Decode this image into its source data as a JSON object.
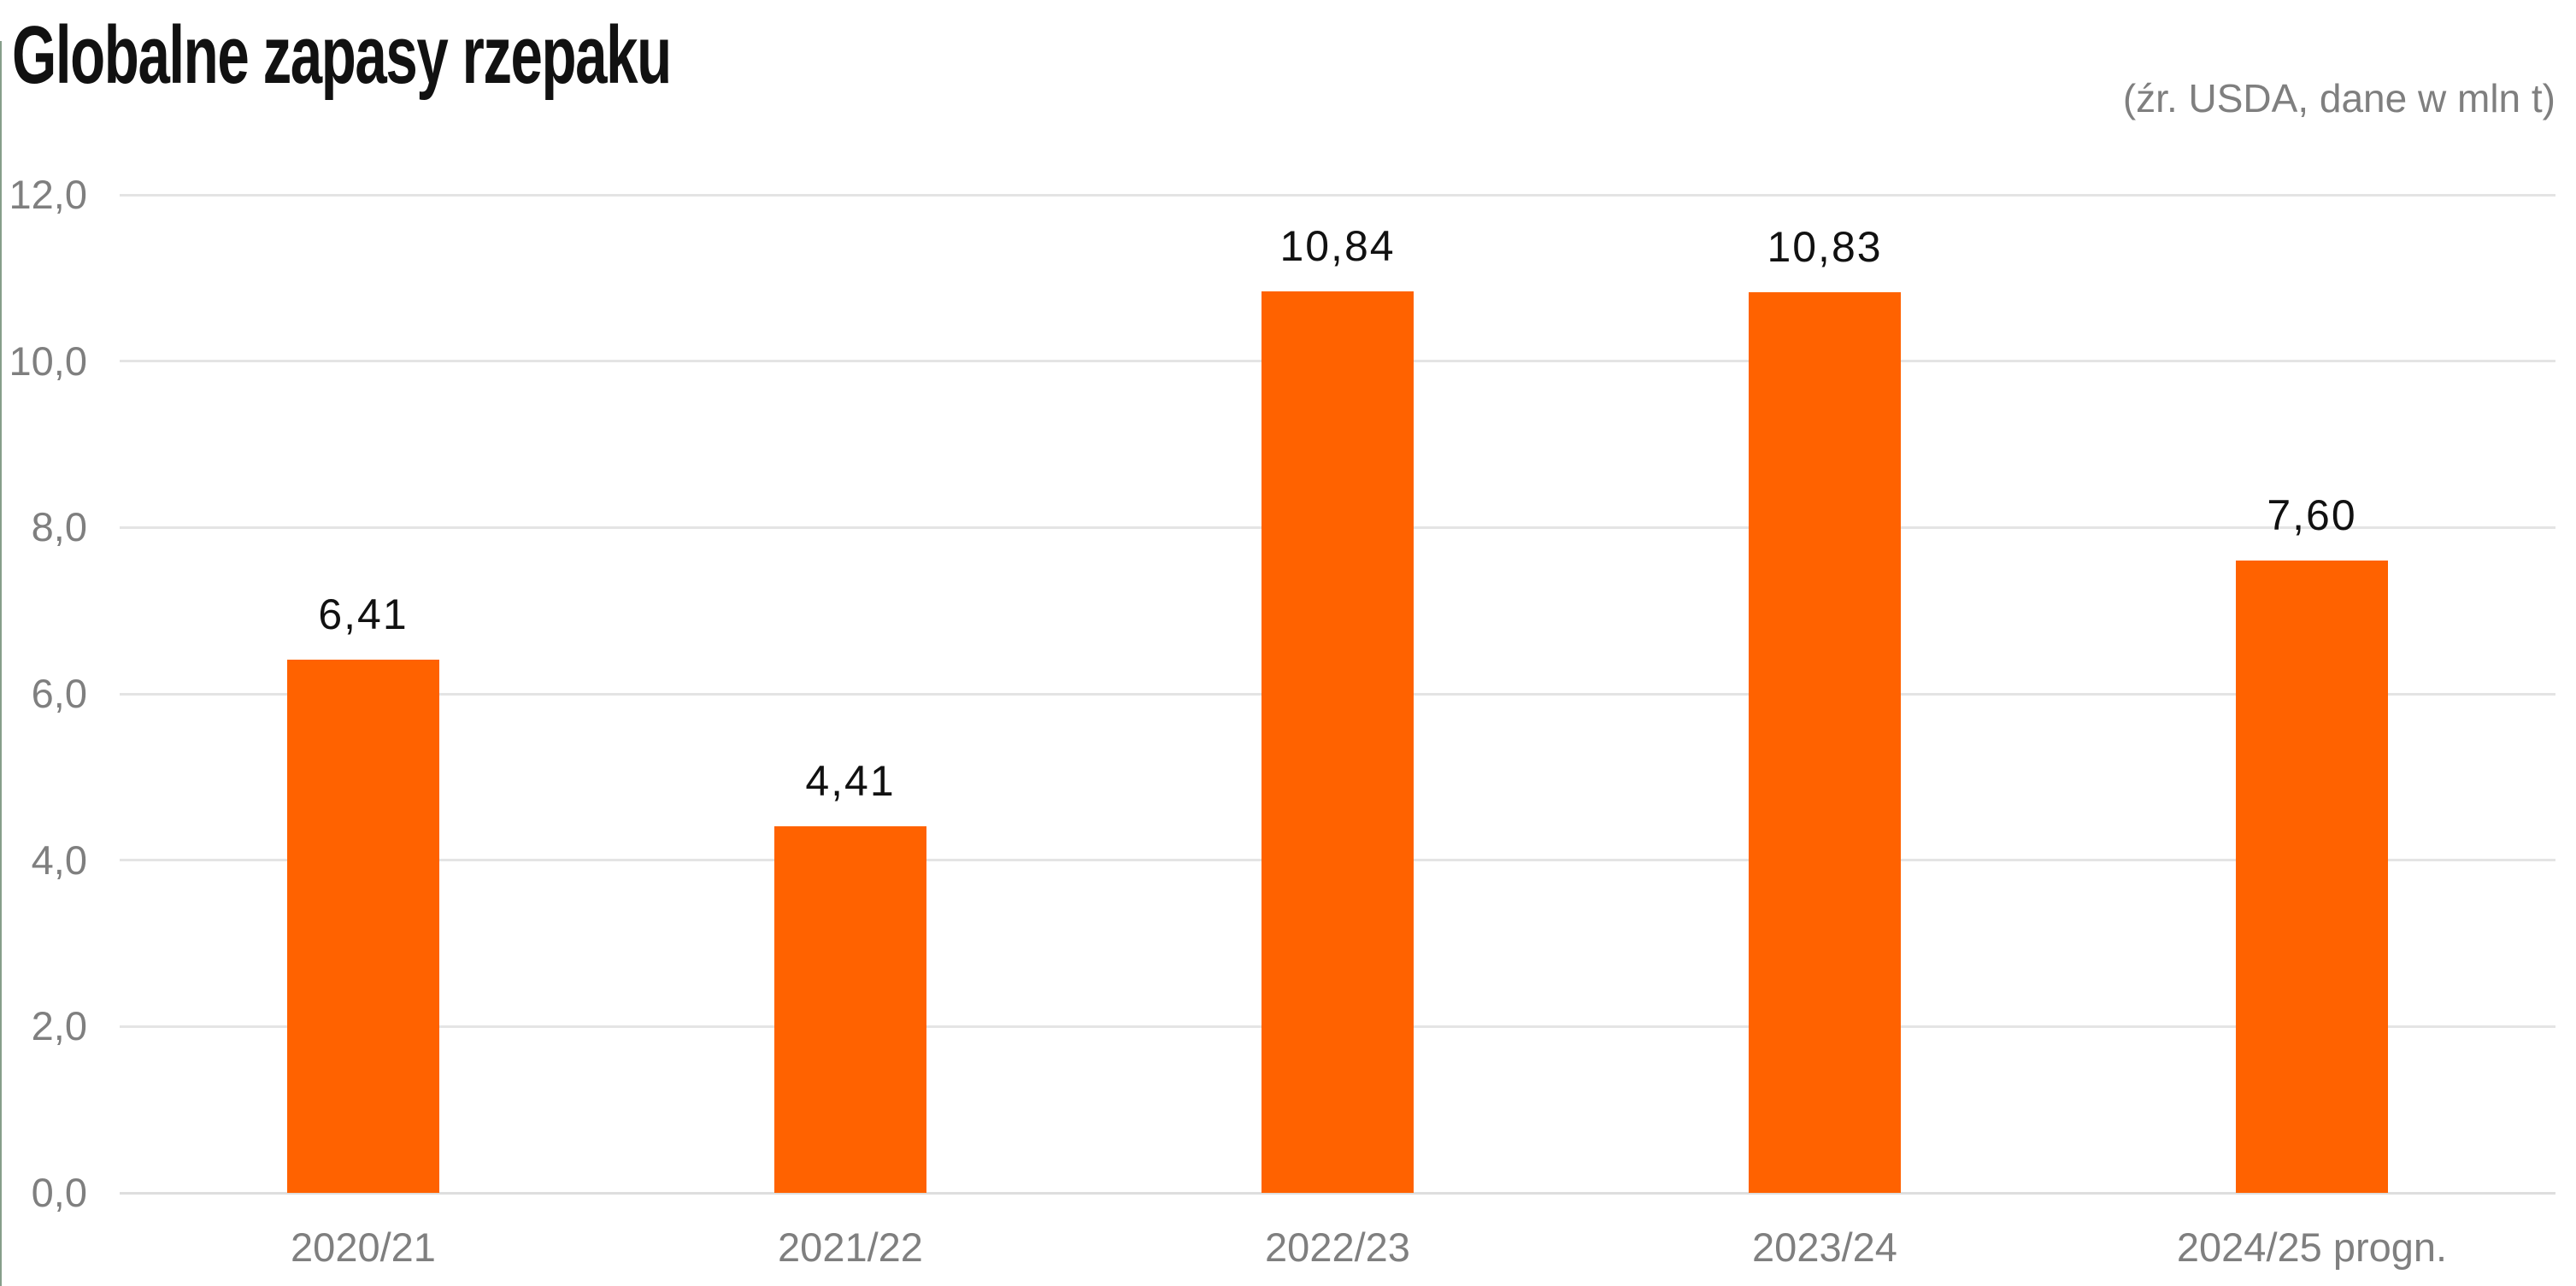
{
  "header": {
    "title": "Globalne zapasy rzepaku",
    "source_note": "(źr. USDA, dane w mln t)"
  },
  "colors": {
    "bar": "#FF6200",
    "gridline": "#e4e4e4",
    "axis_label": "#7f7f7f",
    "value_label": "#111111",
    "title": "#111111",
    "background": "#ffffff",
    "left_edge_artifact": "#5d7d63"
  },
  "chart_data": {
    "type": "bar",
    "title": "Globalne zapasy rzepaku",
    "subtitle": "(źr. USDA, dane w mln t)",
    "unit": "mln t",
    "source": "USDA",
    "categories": [
      "2020/21",
      "2021/22",
      "2022/23",
      "2023/24",
      "2024/25 progn."
    ],
    "values": [
      6.41,
      4.41,
      10.84,
      10.83,
      7.6
    ],
    "value_labels": [
      "6,41",
      "4,41",
      "10,84",
      "10,83",
      "7,60"
    ],
    "xlabel": "",
    "ylabel": "",
    "ylim": [
      0,
      12
    ],
    "ytick_step": 2,
    "yticks": [
      0,
      2,
      4,
      6,
      8,
      10,
      12
    ],
    "ytick_labels": [
      "0,0",
      "2,0",
      "4,0",
      "6,0",
      "8,0",
      "10,0",
      "12,0"
    ],
    "grid": true,
    "legend": false,
    "bar_color": "#FF6200",
    "decimal_separator": ","
  }
}
